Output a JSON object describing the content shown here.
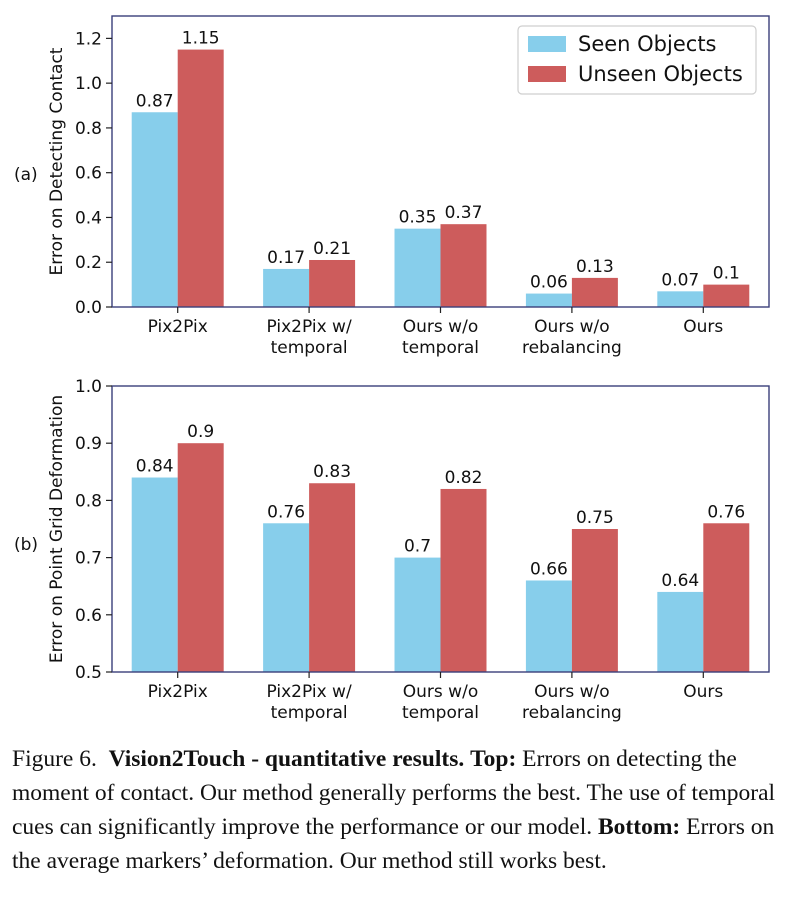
{
  "chart_data": [
    {
      "type": "bar",
      "panel_label": "(a)",
      "ylabel": "Error on Detecting Contact",
      "ylim": [
        0,
        1.3
      ],
      "yticks": [
        "0.0",
        "0.2",
        "0.4",
        "0.6",
        "0.8",
        "1.0",
        "1.2"
      ],
      "ytick_values": [
        0,
        0.2,
        0.4,
        0.6,
        0.8,
        1.0,
        1.2
      ],
      "categories": [
        [
          "Pix2Pix"
        ],
        [
          "Pix2Pix w/",
          "temporal"
        ],
        [
          "Ours w/o",
          "temporal"
        ],
        [
          "Ours w/o",
          "rebalancing"
        ],
        [
          "Ours"
        ]
      ],
      "series": [
        {
          "name": "Seen Objects",
          "color": "#87ceeb",
          "values": [
            0.87,
            0.17,
            0.35,
            0.06,
            0.07
          ],
          "labels": [
            "0.87",
            "0.17",
            "0.35",
            "0.06",
            "0.07"
          ]
        },
        {
          "name": "Unseen Objects",
          "color": "#cd5c5c",
          "values": [
            1.15,
            0.21,
            0.37,
            0.13,
            0.1
          ],
          "labels": [
            "1.15",
            "0.21",
            "0.37",
            "0.13",
            "0.1"
          ]
        }
      ],
      "legend": "top-right",
      "grid": false
    },
    {
      "type": "bar",
      "panel_label": "(b)",
      "ylabel": "Error on Point Grid Deformation",
      "ylim": [
        0.5,
        1.0
      ],
      "yticks": [
        "0.5",
        "0.6",
        "0.7",
        "0.8",
        "0.9",
        "1.0"
      ],
      "ytick_values": [
        0.5,
        0.6,
        0.7,
        0.8,
        0.9,
        1.0
      ],
      "categories": [
        [
          "Pix2Pix"
        ],
        [
          "Pix2Pix w/",
          "temporal"
        ],
        [
          "Ours w/o",
          "temporal"
        ],
        [
          "Ours w/o",
          "rebalancing"
        ],
        [
          "Ours"
        ]
      ],
      "series": [
        {
          "name": "Seen Objects",
          "color": "#87ceeb",
          "values": [
            0.84,
            0.76,
            0.7,
            0.66,
            0.64
          ],
          "labels": [
            "0.84",
            "0.76",
            "0.7",
            "0.66",
            "0.64"
          ]
        },
        {
          "name": "Unseen Objects",
          "color": "#cd5c5c",
          "values": [
            0.9,
            0.83,
            0.82,
            0.75,
            0.76
          ],
          "labels": [
            "0.9",
            "0.83",
            "0.82",
            "0.75",
            "0.76"
          ]
        }
      ],
      "legend": "none",
      "grid": false
    }
  ],
  "caption": {
    "prefix": "Figure 6.",
    "title": "Vision2Touch - quantitative results.",
    "top_label": "Top:",
    "top_text": "Errors on detecting the moment of contact. Our method generally performs the best. The use of temporal cues can significantly improve the performance or our model.",
    "bottom_label": "Bottom:",
    "bottom_text": "Errors on the average markers’ deformation. Our method still works best."
  }
}
